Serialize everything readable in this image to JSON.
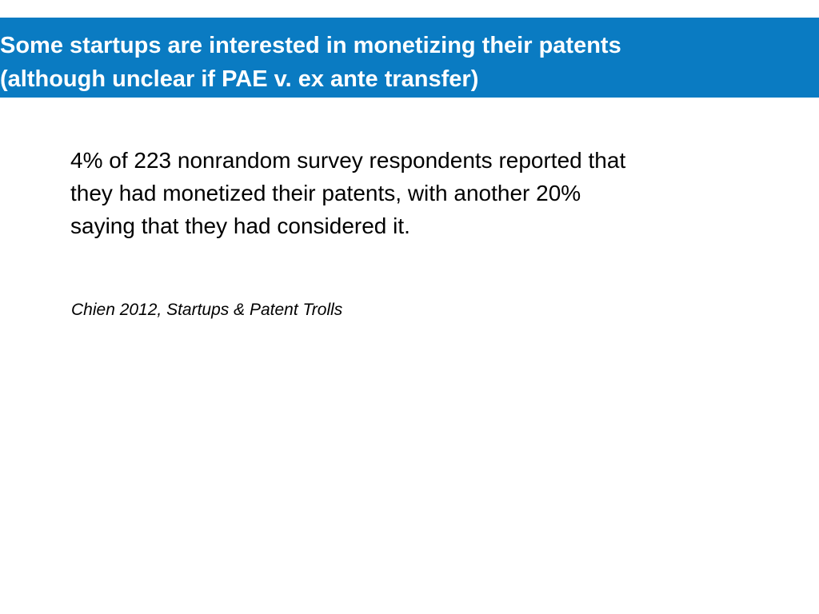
{
  "slide": {
    "title_lines": [
      "Some startups are interested in monetizing their patents",
      "(although unclear if PAE v. ex ante transfer)"
    ],
    "body_lines": [
      "4% of 223 nonrandom survey respondents reported that",
      "they had monetized their patents, with another 20%",
      "saying that they had considered it."
    ],
    "citation": "Chien 2012, Startups & Patent Trolls"
  },
  "colors": {
    "title_bar": "#0a7bc2",
    "title_text": "#ffffff",
    "body_text": "#000000"
  }
}
